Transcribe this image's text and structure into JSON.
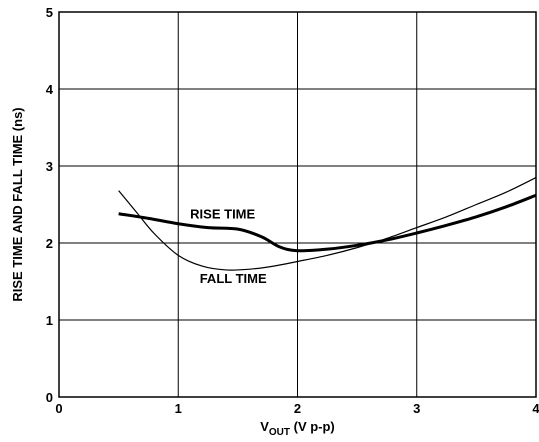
{
  "chart_data": {
    "type": "line",
    "title": "",
    "xlabel_main": "V",
    "xlabel_sub": "OUT",
    "xlabel_rest": " (V p-p)",
    "ylabel": "RISE TIME AND FALL TIME (ns)",
    "xlim": [
      0,
      4
    ],
    "ylim": [
      0,
      5
    ],
    "x_ticks": [
      "0",
      "1",
      "2",
      "3",
      "4"
    ],
    "y_ticks": [
      "0",
      "1",
      "2",
      "3",
      "4",
      "5"
    ],
    "grid": true,
    "legend": "none",
    "series": [
      {
        "name": "RISE TIME",
        "color": "#000000",
        "line": "thick",
        "x": [
          0.5,
          0.75,
          1.0,
          1.25,
          1.5,
          1.7,
          1.85,
          2.0,
          2.25,
          2.5,
          2.75,
          3.0,
          3.25,
          3.5,
          3.75,
          4.0
        ],
        "y": [
          2.38,
          2.32,
          2.25,
          2.2,
          2.18,
          2.08,
          1.95,
          1.9,
          1.92,
          1.97,
          2.04,
          2.13,
          2.23,
          2.34,
          2.47,
          2.62
        ]
      },
      {
        "name": "FALL TIME",
        "color": "#000000",
        "line": "thin",
        "x": [
          0.5,
          0.65,
          0.8,
          1.0,
          1.2,
          1.4,
          1.6,
          1.8,
          2.0,
          2.25,
          2.5,
          2.75,
          3.0,
          3.25,
          3.5,
          3.75,
          4.0
        ],
        "y": [
          2.68,
          2.4,
          2.12,
          1.84,
          1.7,
          1.65,
          1.66,
          1.7,
          1.76,
          1.84,
          1.94,
          2.06,
          2.2,
          2.34,
          2.5,
          2.66,
          2.85
        ]
      }
    ],
    "annotations": [
      {
        "text": "RISE TIME",
        "x": 1.1,
        "y": 2.32
      },
      {
        "text": "FALL TIME",
        "x": 1.18,
        "y": 1.48
      }
    ]
  }
}
